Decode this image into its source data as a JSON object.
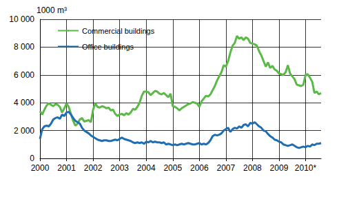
{
  "chart_data": {
    "type": "line",
    "y_label": "1000 m³",
    "categories": [
      "2000",
      null,
      null,
      null,
      null,
      null,
      null,
      null,
      null,
      null,
      null,
      null,
      "2001",
      null,
      null,
      null,
      null,
      null,
      null,
      null,
      null,
      null,
      null,
      null,
      "2002",
      null,
      null,
      null,
      null,
      null,
      null,
      null,
      null,
      null,
      null,
      null,
      "2003",
      null,
      null,
      null,
      null,
      null,
      null,
      null,
      null,
      null,
      null,
      null,
      "2004",
      null,
      null,
      null,
      null,
      null,
      null,
      null,
      null,
      null,
      null,
      null,
      "2005",
      null,
      null,
      null,
      null,
      null,
      null,
      null,
      null,
      null,
      null,
      null,
      "2006",
      null,
      null,
      null,
      null,
      null,
      null,
      null,
      null,
      null,
      null,
      null,
      "2007",
      null,
      null,
      null,
      null,
      null,
      null,
      null,
      null,
      null,
      null,
      null,
      "2008",
      null,
      null,
      null,
      null,
      null,
      null,
      null,
      null,
      null,
      null,
      null,
      "2009",
      null,
      null,
      null,
      null,
      null,
      null,
      null,
      null,
      null,
      null,
      null,
      "2010*",
      null,
      null,
      null,
      null,
      null,
      null,
      null
    ],
    "series": [
      {
        "name": "Commercial buildings",
        "color": "#5bb947",
        "values": [
          3400,
          3150,
          3500,
          3800,
          3950,
          3850,
          3750,
          3900,
          3850,
          3700,
          3300,
          3600,
          3950,
          3700,
          3200,
          2700,
          2350,
          2500,
          2800,
          2900,
          2650,
          2700,
          2750,
          2600,
          3500,
          3950,
          3700,
          3650,
          3750,
          3700,
          3600,
          3650,
          3450,
          3500,
          3200,
          3050,
          3150,
          3200,
          3100,
          3250,
          3150,
          3300,
          3550,
          3500,
          3700,
          4000,
          4500,
          4800,
          4800,
          4750,
          4550,
          4700,
          4850,
          4800,
          4650,
          4600,
          4700,
          4550,
          4400,
          4650,
          3750,
          3700,
          3600,
          3450,
          3600,
          3700,
          3800,
          3900,
          3950,
          4050,
          4000,
          3950,
          3700,
          4100,
          4300,
          4500,
          4450,
          4600,
          4900,
          5200,
          5600,
          5900,
          6200,
          6700,
          6600,
          7000,
          7600,
          8100,
          8300,
          8800,
          8600,
          8700,
          8500,
          8700,
          8600,
          8300,
          8250,
          8200,
          8100,
          7700,
          7400,
          7000,
          6600,
          6900,
          6500,
          6650,
          6400,
          6300,
          6100,
          6050,
          6000,
          6200,
          6700,
          6100,
          5900,
          5700,
          5300,
          5250,
          5200,
          5300,
          6000,
          6050,
          5800,
          5500,
          4700,
          4800,
          4600,
          4700
        ]
      },
      {
        "name": "Office buildings",
        "color": "#1f6db3",
        "values": [
          1400,
          2100,
          2300,
          2350,
          2300,
          2500,
          2800,
          2900,
          2950,
          2850,
          3150,
          3050,
          3300,
          3350,
          3150,
          2900,
          2700,
          2600,
          2500,
          2200,
          2000,
          1900,
          1800,
          1650,
          1550,
          1450,
          1350,
          1300,
          1250,
          1300,
          1300,
          1250,
          1250,
          1300,
          1350,
          1300,
          1400,
          1500,
          1400,
          1350,
          1300,
          1250,
          1150,
          1100,
          1150,
          1100,
          1150,
          1050,
          1200,
          1150,
          1250,
          1150,
          1200,
          1150,
          1150,
          1100,
          1150,
          1000,
          1050,
          1000,
          950,
          1000,
          950,
          1000,
          1050,
          1000,
          1050,
          1100,
          1050,
          1000,
          1000,
          1050,
          1100,
          1000,
          1050,
          1000,
          1100,
          1300,
          1600,
          1700,
          1650,
          1700,
          1800,
          2000,
          2100,
          2200,
          1900,
          2100,
          2200,
          2150,
          2300,
          2200,
          2400,
          2450,
          2300,
          2550,
          2500,
          2600,
          2450,
          2300,
          2200,
          2000,
          1950,
          1750,
          1600,
          1500,
          1350,
          1300,
          1200,
          1150,
          1000,
          950,
          900,
          950,
          1000,
          900,
          800,
          750,
          800,
          850,
          800,
          900,
          850,
          1000,
          950,
          1050,
          1050,
          1100
        ]
      }
    ],
    "ylim": [
      0,
      10000
    ],
    "yticks": [
      0,
      {
        "value": 2000,
        "label": "2 000"
      },
      {
        "value": 4000,
        "label": "4 000"
      },
      {
        "value": 6000,
        "label": "6 000"
      },
      {
        "value": 8000,
        "label": "8 000"
      },
      {
        "value": 10000,
        "label": "10 000"
      }
    ],
    "grid": true,
    "legend": "top-left"
  }
}
